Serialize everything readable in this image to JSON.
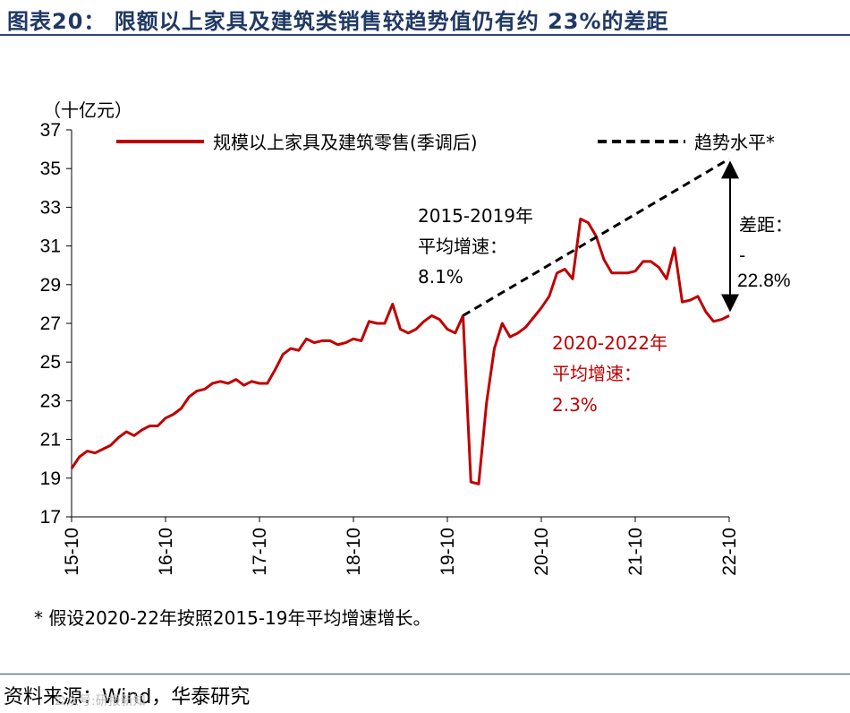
{
  "header": {
    "title": "图表20： 限额以上家具及建筑类销售较趋势值仍有约 23%的差距"
  },
  "footnote": "* 假设2020-22年按照2015-19年平均增速增长。",
  "source": "资料来源：Wind，华泰研究",
  "watermark": "公众号:研报新知",
  "colors": {
    "actual": "#c00000",
    "trend": "#000000",
    "title": "#1f3864"
  },
  "chart_data": {
    "type": "line",
    "unit_label": "（十亿元）",
    "ylim": [
      17,
      37
    ],
    "yticks": [
      17,
      19,
      21,
      23,
      25,
      27,
      29,
      31,
      33,
      35,
      37
    ],
    "xtick_labels": [
      "15-10",
      "16-10",
      "17-10",
      "18-10",
      "19-10",
      "20-10",
      "21-10",
      "22-10"
    ],
    "legend": {
      "placement": "top",
      "actual_label": "规模以上家具及建筑零售(季调后)",
      "trend_label": "趋势水平*"
    },
    "series": [
      {
        "name": "规模以上家具及建筑零售(季调后)",
        "style": "solid",
        "values": [
          19.5,
          20.1,
          20.4,
          20.3,
          20.5,
          20.7,
          21.1,
          21.4,
          21.2,
          21.5,
          21.7,
          21.7,
          22.1,
          22.3,
          22.6,
          23.2,
          23.5,
          23.6,
          23.9,
          24.0,
          23.9,
          24.1,
          23.8,
          24.0,
          23.9,
          23.9,
          24.6,
          25.4,
          25.7,
          25.6,
          26.2,
          26.0,
          26.1,
          26.1,
          25.9,
          26.0,
          26.2,
          26.1,
          27.1,
          27.0,
          27.0,
          28.0,
          26.7,
          26.5,
          26.7,
          27.1,
          27.4,
          27.2,
          26.7,
          26.5,
          27.4,
          18.8,
          18.7,
          22.9,
          25.7,
          27.0,
          26.3,
          26.5,
          26.8,
          27.3,
          27.8,
          28.4,
          29.6,
          29.8,
          29.3,
          32.4,
          32.2,
          31.5,
          30.3,
          29.6,
          29.6,
          29.6,
          29.7,
          30.2,
          30.2,
          29.9,
          29.3,
          30.9,
          28.1,
          28.2,
          28.4,
          27.6,
          27.1,
          27.2,
          27.4
        ]
      },
      {
        "name": "趋势水平*",
        "style": "dashed",
        "start_month_index": 50,
        "values": [
          27.4,
          35.5
        ]
      }
    ],
    "annotations": {
      "period1": [
        "2015-2019年",
        "平均增速：",
        "8.1%"
      ],
      "period2": [
        "2020-2022年",
        "平均增速：",
        "2.3%"
      ],
      "gap": [
        "差距：",
        "-",
        "22.8%"
      ]
    }
  }
}
